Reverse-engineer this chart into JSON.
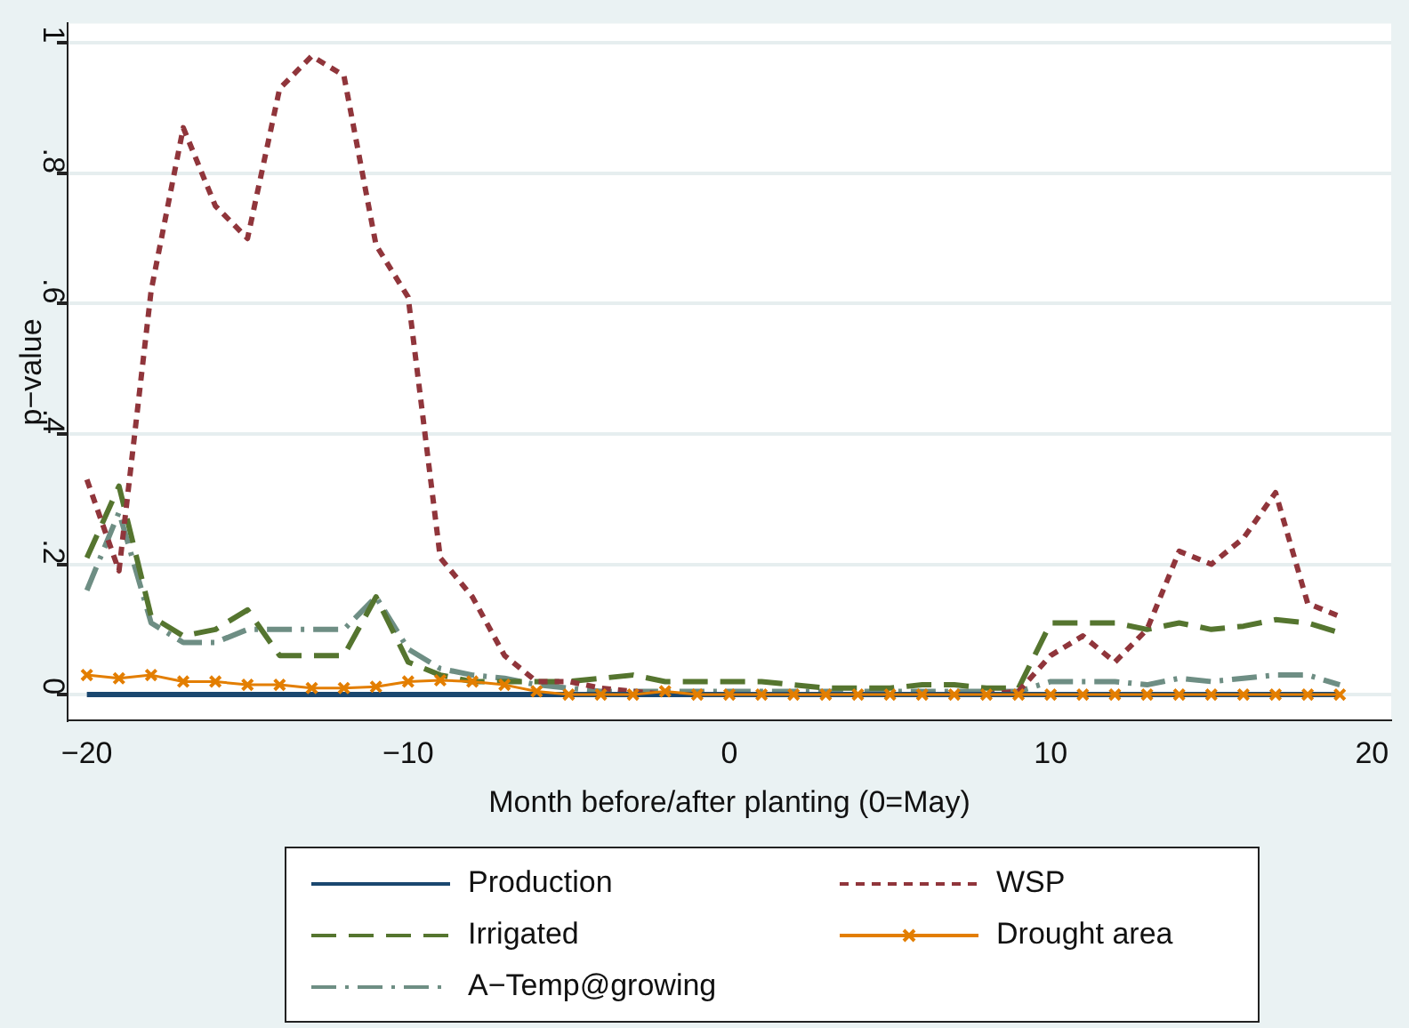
{
  "chart_data": {
    "type": "line",
    "xlabel": "Month before/after planting (0=May)",
    "ylabel": "p−value",
    "x": [
      -20,
      -19,
      -18,
      -17,
      -16,
      -15,
      -14,
      -13,
      -12,
      -11,
      -10,
      -9,
      -8,
      -7,
      -6,
      -5,
      -4,
      -3,
      -2,
      -1,
      0,
      1,
      2,
      3,
      4,
      5,
      6,
      7,
      8,
      9,
      10,
      11,
      12,
      13,
      14,
      15,
      16,
      17,
      18,
      19
    ],
    "xlim": [
      -20.6,
      20.6
    ],
    "xticks": [
      {
        "value": -20,
        "label": "−20"
      },
      {
        "value": -10,
        "label": "−10"
      },
      0,
      10,
      20
    ],
    "ylim": [
      -0.04,
      1.03
    ],
    "yticks": [
      0,
      {
        "value": 0.2,
        "label": ".2"
      },
      {
        "value": 0.4,
        "label": ".4"
      },
      {
        "value": 0.6,
        "label": ".6"
      },
      {
        "value": 0.8,
        "label": ".8"
      },
      1
    ],
    "grid": "y",
    "legend": "bottom",
    "series": [
      {
        "name": "Production",
        "color": "#1a476f",
        "line_style": "solid",
        "marker": "none",
        "values": [
          0,
          0,
          0,
          0,
          0,
          0,
          0,
          0,
          0,
          0,
          0,
          0,
          0,
          0,
          0,
          0,
          0,
          0,
          0,
          0,
          0,
          0,
          0,
          0,
          0,
          0,
          0,
          0,
          0,
          0,
          0,
          0,
          0,
          0,
          0,
          0,
          0,
          0,
          0,
          0
        ]
      },
      {
        "name": "WSP",
        "color": "#90353b",
        "line_style": "dotted",
        "marker": "none",
        "values": [
          0.33,
          0.19,
          0.62,
          0.87,
          0.75,
          0.7,
          0.93,
          0.98,
          0.95,
          0.69,
          0.61,
          0.21,
          0.15,
          0.06,
          0.02,
          0.02,
          0.01,
          0.005,
          0,
          0,
          0,
          0,
          0,
          0,
          0,
          0,
          0,
          0,
          0,
          0.005,
          0.06,
          0.09,
          0.05,
          0.1,
          0.22,
          0.2,
          0.24,
          0.31,
          0.14,
          0.12
        ]
      },
      {
        "name": "Irrigated",
        "color": "#55752f",
        "line_style": "dashed",
        "marker": "none",
        "values": [
          0.21,
          0.32,
          0.12,
          0.09,
          0.1,
          0.13,
          0.06,
          0.06,
          0.06,
          0.15,
          0.05,
          0.03,
          0.02,
          0.02,
          0.02,
          0.02,
          0.025,
          0.03,
          0.02,
          0.02,
          0.02,
          0.02,
          0.015,
          0.01,
          0.01,
          0.01,
          0.015,
          0.015,
          0.01,
          0.01,
          0.11,
          0.11,
          0.11,
          0.1,
          0.11,
          0.1,
          0.105,
          0.115,
          0.11,
          0.095
        ]
      },
      {
        "name": "Drought area",
        "color": "#e37e00",
        "line_style": "solid",
        "marker": "cross",
        "values": [
          0.03,
          0.025,
          0.03,
          0.02,
          0.02,
          0.015,
          0.015,
          0.01,
          0.01,
          0.012,
          0.02,
          0.022,
          0.02,
          0.015,
          0.005,
          0,
          0,
          0,
          0.005,
          0,
          0,
          0,
          0,
          0,
          0,
          0,
          0,
          0,
          0,
          0,
          0,
          0,
          0,
          0,
          0,
          0,
          0,
          0,
          0,
          0
        ]
      },
      {
        "name": "A−Temp@growing",
        "color": "#6e8e84",
        "line_style": "dashdot",
        "marker": "none",
        "values": [
          0.16,
          0.28,
          0.11,
          0.08,
          0.08,
          0.1,
          0.1,
          0.1,
          0.1,
          0.15,
          0.07,
          0.04,
          0.03,
          0.025,
          0.015,
          0.01,
          0.005,
          0.005,
          0.005,
          0.005,
          0.005,
          0.005,
          0.005,
          0.005,
          0.005,
          0.005,
          0.005,
          0.005,
          0.005,
          0.005,
          0.02,
          0.02,
          0.02,
          0.015,
          0.025,
          0.02,
          0.025,
          0.03,
          0.03,
          0.015
        ]
      }
    ]
  }
}
